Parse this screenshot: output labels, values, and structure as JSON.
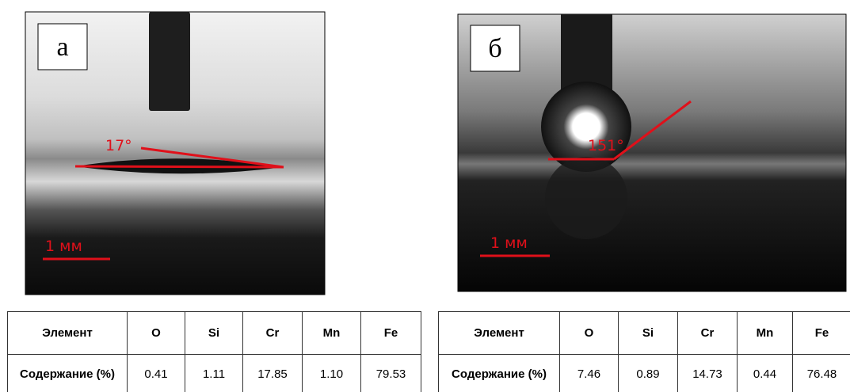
{
  "panels": [
    {
      "label": "а",
      "angle": "17°",
      "scale": "1 мм",
      "table": {
        "header": [
          "Элемент",
          "O",
          "Si",
          "Cr",
          "Mn",
          "Fe"
        ],
        "row": [
          "Содержание (%)",
          "0.41",
          "1.11",
          "17.85",
          "1.10",
          "79.53"
        ]
      }
    },
    {
      "label": "б",
      "angle": "151°",
      "scale": "1 мм",
      "table": {
        "header": [
          "Элемент",
          "O",
          "Si",
          "Cr",
          "Mn",
          "Fe"
        ],
        "row": [
          "Содержание (%)",
          "7.46",
          "0.89",
          "14.73",
          "0.44",
          "76.48"
        ]
      }
    }
  ]
}
